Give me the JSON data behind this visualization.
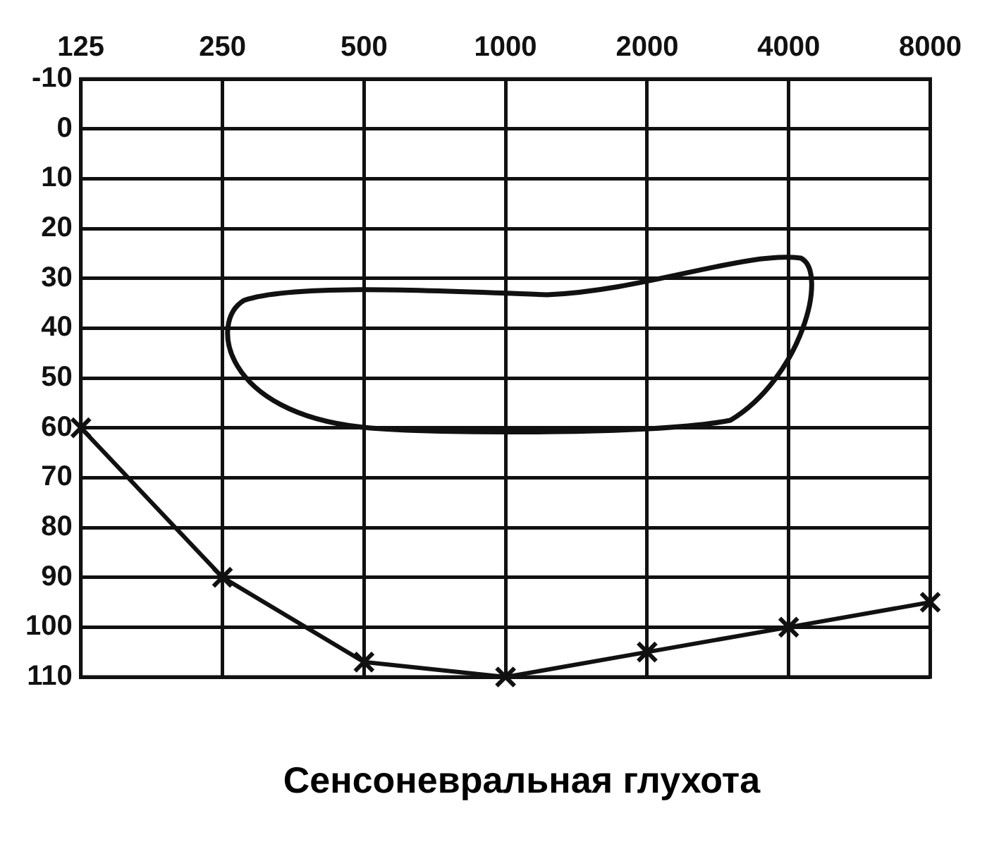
{
  "chart_data": {
    "type": "line",
    "title": "Сенсоневральная глухота",
    "categories": [
      "125",
      "250",
      "500",
      "1000",
      "2000",
      "4000",
      "8000"
    ],
    "series": [
      {
        "color": "#111111",
        "values": [
          60,
          90,
          107,
          110,
          105,
          100,
          95
        ]
      }
    ],
    "ylim": [
      110,
      -10
    ],
    "yticks": [
      -10,
      0,
      10,
      20,
      30,
      40,
      50,
      60,
      70,
      80,
      90,
      100,
      110
    ],
    "grid": true,
    "marker": "cross",
    "line_style": "solid",
    "legend": false
  }
}
